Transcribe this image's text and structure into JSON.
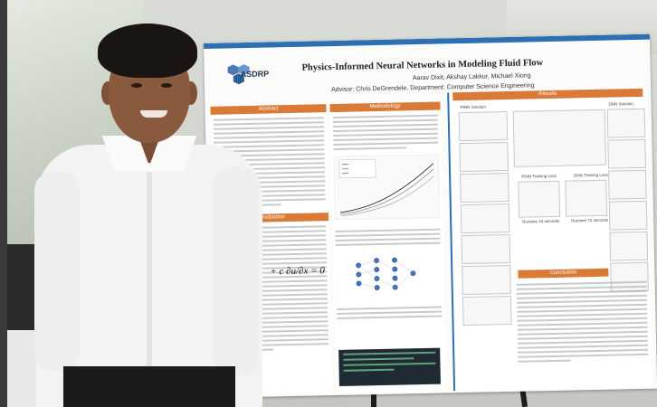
{
  "poster": {
    "logo_text": "ASDRP",
    "title": "Physics-Informed Neural Networks in Modeling Fluid Flow",
    "authors": "Aarav Dixit, Akshay Lakkur, Michael Xiong",
    "advisor": "Advisor: Chris DeGrendele, Department: Computer Science Engineering",
    "sections": {
      "abstract": "Abstract",
      "introduction": "Introduction",
      "methodology": "Methodology",
      "results": "Results",
      "conclusion": "Conclusion"
    },
    "result_labels": {
      "pinn_solution": "PINN Solution",
      "dnn_solution": "DNN Solution",
      "pinn_loss": "PINN Training Loss",
      "dnn_loss": "DNN Training Loss",
      "runtime_pinn": "Runtime 34 seconds",
      "runtime_dnn": "Runtime 72 seconds"
    },
    "equation": "+ c ∂u/∂x = 0"
  },
  "colors": {
    "accent_orange": "#d97a37",
    "accent_blue": "#2c6fb3"
  }
}
